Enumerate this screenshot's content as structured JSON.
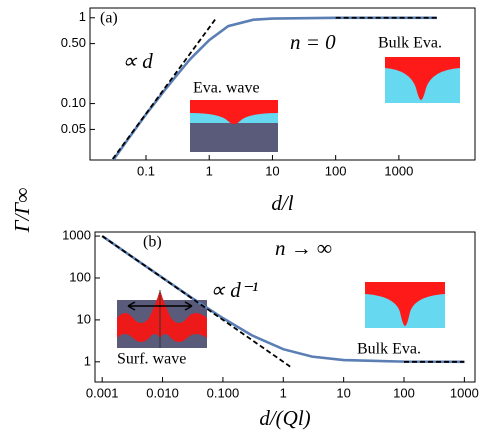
{
  "y_label": "Γ/Γ∞",
  "chart_data": [
    {
      "type": "line",
      "x_label": "d/l",
      "log_x": true,
      "log_y": true,
      "xlim": [
        0.013,
        16000
      ],
      "ylim": [
        0.022,
        1.3
      ],
      "xticks": [
        0.1,
        1,
        10,
        100,
        1000
      ],
      "yticks": [
        0.05,
        {
          "value": 0.1,
          "label": "0.10"
        },
        {
          "value": 0.5,
          "label": "0.50"
        },
        1
      ],
      "series": [
        {
          "color": "#5b7fb5",
          "dash": false,
          "x": [
            0.025,
            0.05,
            0.1,
            0.2,
            0.3,
            0.5,
            1,
            2,
            5,
            10,
            100,
            4000
          ],
          "values": [
            0.018,
            0.037,
            0.075,
            0.145,
            0.21,
            0.33,
            0.55,
            0.8,
            0.95,
            0.98,
            1,
            1
          ]
        },
        {
          "color": "#000000",
          "dash": true,
          "x": [
            0.025,
            1.3
          ],
          "values": [
            0.019,
            1
          ]
        },
        {
          "color": "#000000",
          "dash": true,
          "x": [
            100,
            4000
          ],
          "values": [
            1,
            1
          ]
        }
      ],
      "annotations": [
        "(a)",
        "∝ d",
        "n = 0",
        "Eva. wave",
        "Bulk Eva."
      ]
    },
    {
      "type": "line",
      "x_label": "d/(Ql)",
      "log_x": true,
      "log_y": true,
      "xlim": [
        0.00076,
        1500
      ],
      "ylim": [
        0.33,
        1250
      ],
      "xticks": [
        0.001,
        {
          "value": 0.01,
          "label": "0.010"
        },
        {
          "value": 0.1,
          "label": "0.100"
        },
        1,
        10,
        100,
        1000
      ],
      "yticks": [
        1,
        10,
        100,
        1000
      ],
      "series": [
        {
          "color": "#5b7fb5",
          "dash": false,
          "x": [
            0.001,
            0.003,
            0.01,
            0.03,
            0.1,
            0.3,
            1,
            3,
            10,
            100,
            1000
          ],
          "values": [
            1000,
            334,
            101,
            34,
            11,
            4.3,
            2,
            1.33,
            1.1,
            1.01,
            1
          ]
        },
        {
          "color": "#000000",
          "dash": true,
          "x": [
            0.001,
            1.3
          ],
          "values": [
            1000,
            0.77
          ]
        },
        {
          "color": "#000000",
          "dash": true,
          "x": [
            100,
            1000
          ],
          "values": [
            1,
            1
          ]
        }
      ],
      "annotations": [
        "(b)",
        "n → ∞",
        "∝ d⁻¹",
        "Surf. wave",
        "Bulk Eva."
      ]
    }
  ]
}
